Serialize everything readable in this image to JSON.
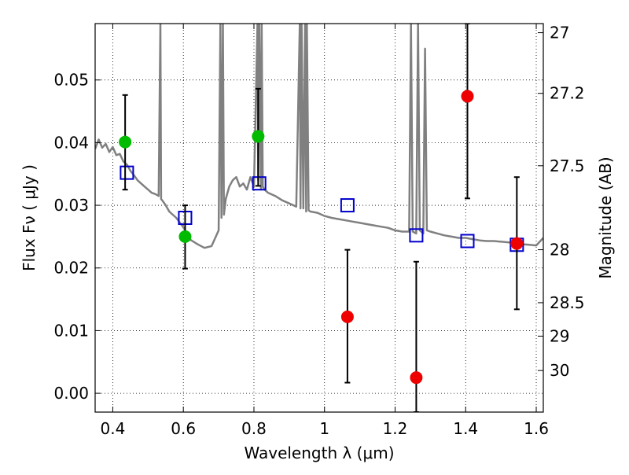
{
  "chart_data": {
    "type": "scatter",
    "xlabel": "Wavelength  λ (μm)",
    "ylabel": "Flux  Fν  ( μJy )",
    "y2label": "Magnitude (AB)",
    "xlim": [
      0.35,
      1.62
    ],
    "ylim": [
      -0.003,
      0.059
    ],
    "grid": true,
    "grid_style": "dotted",
    "x_ticks": [
      0.4,
      0.6,
      0.8,
      1.0,
      1.2,
      1.4,
      1.6
    ],
    "x_tick_labels": [
      "0.4",
      "0.6",
      "0.8",
      "1",
      "1.2",
      "1.4",
      "1.6"
    ],
    "y_ticks": [
      0.0,
      0.01,
      0.02,
      0.03,
      0.04,
      0.05
    ],
    "y_tick_labels": [
      "0.00",
      "0.01",
      "0.02",
      "0.03",
      "0.04",
      "0.05"
    ],
    "y2_ticks": [
      27,
      27.2,
      27.5,
      28,
      28.5,
      29,
      30
    ],
    "y2_tick_labels": [
      "27",
      "27.2",
      "27.5",
      "28",
      "28.5",
      "29",
      "30"
    ],
    "colors": {
      "model": "#808080",
      "model_photometry": "#0000cc",
      "detections": "#00bb00",
      "nondetections": "#ee0000",
      "errorbar": "#000000",
      "grid": "#000000"
    },
    "series": [
      {
        "kind": "line",
        "color": "#808080",
        "x": [
          0.35,
          0.36,
          0.37,
          0.38,
          0.39,
          0.4,
          0.41,
          0.42,
          0.43,
          0.44,
          0.45,
          0.46,
          0.47,
          0.48,
          0.49,
          0.5,
          0.51,
          0.52,
          0.53,
          0.535,
          0.537,
          0.54,
          0.55,
          0.56,
          0.58,
          0.6,
          0.62,
          0.64,
          0.66,
          0.68,
          0.7,
          0.705,
          0.708,
          0.712,
          0.715,
          0.72,
          0.73,
          0.74,
          0.75,
          0.76,
          0.77,
          0.78,
          0.79,
          0.8,
          0.81,
          0.812,
          0.815,
          0.82,
          0.822,
          0.825,
          0.83,
          0.84,
          0.86,
          0.88,
          0.9,
          0.92,
          0.93,
          0.932,
          0.935,
          0.94,
          0.945,
          0.948,
          0.95,
          0.955,
          0.96,
          0.98,
          1.0,
          1.02,
          1.04,
          1.06,
          1.08,
          1.1,
          1.12,
          1.14,
          1.16,
          1.18,
          1.2,
          1.22,
          1.24,
          1.245,
          1.25,
          1.26,
          1.265,
          1.27,
          1.28,
          1.285,
          1.29,
          1.3,
          1.32,
          1.34,
          1.36,
          1.38,
          1.4,
          1.42,
          1.44,
          1.46,
          1.48,
          1.5,
          1.52,
          1.54,
          1.56,
          1.58,
          1.6,
          1.62
        ],
        "y": [
          0.039,
          0.0405,
          0.0392,
          0.0398,
          0.0385,
          0.0393,
          0.038,
          0.0382,
          0.037,
          0.0365,
          0.0355,
          0.0348,
          0.034,
          0.0335,
          0.033,
          0.0325,
          0.032,
          0.0318,
          0.0315,
          0.059,
          0.031,
          0.0308,
          0.03,
          0.029,
          0.028,
          0.0265,
          0.0245,
          0.0238,
          0.0232,
          0.0235,
          0.026,
          0.059,
          0.028,
          0.059,
          0.0285,
          0.031,
          0.033,
          0.034,
          0.0345,
          0.033,
          0.0335,
          0.0325,
          0.0345,
          0.033,
          0.059,
          0.034,
          0.059,
          0.0325,
          0.059,
          0.033,
          0.0325,
          0.032,
          0.0315,
          0.0308,
          0.0303,
          0.0298,
          0.059,
          0.0295,
          0.059,
          0.0295,
          0.059,
          0.029,
          0.059,
          0.0292,
          0.029,
          0.0288,
          0.0283,
          0.028,
          0.0278,
          0.0276,
          0.0274,
          0.0272,
          0.027,
          0.0268,
          0.0266,
          0.0264,
          0.026,
          0.0258,
          0.0258,
          0.059,
          0.0258,
          0.0255,
          0.059,
          0.026,
          0.0255,
          0.055,
          0.026,
          0.0258,
          0.0255,
          0.0252,
          0.025,
          0.0248,
          0.0248,
          0.0246,
          0.0244,
          0.0243,
          0.0243,
          0.0242,
          0.0241,
          0.024,
          0.0238,
          0.0237,
          0.0236,
          0.0248
        ]
      },
      {
        "kind": "open-square",
        "color": "#0000cc",
        "x": [
          0.44,
          0.605,
          0.815,
          1.065,
          1.26,
          1.405,
          1.545
        ],
        "y": [
          0.0352,
          0.028,
          0.0335,
          0.03,
          0.0252,
          0.0243,
          0.0237
        ]
      },
      {
        "kind": "filled-circle",
        "color": "#00bb00",
        "x": [
          0.435,
          0.605,
          0.812
        ],
        "y": [
          0.0401,
          0.025,
          0.041
        ],
        "yerr_low": [
          0.0325,
          0.0199,
          0.0331
        ],
        "yerr_high": [
          0.0476,
          0.03,
          0.0486
        ]
      },
      {
        "kind": "filled-circle",
        "color": "#ee0000",
        "x": [
          1.065,
          1.26,
          1.405,
          1.545
        ],
        "y": [
          0.0122,
          0.0025,
          0.0474,
          0.0239
        ],
        "yerr_low": [
          0.0017,
          -0.003,
          0.0311,
          0.0134
        ],
        "yerr_high": [
          0.0229,
          0.021,
          0.059,
          0.0345
        ]
      }
    ]
  }
}
